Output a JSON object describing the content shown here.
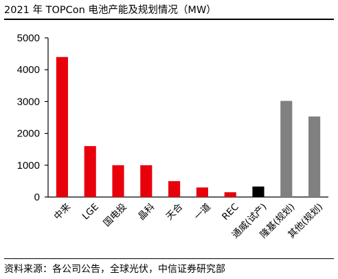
{
  "chart_data": {
    "type": "bar",
    "title": "2021 年 TOPCon 电池产能及规划情况（MW）",
    "categories": [
      "中来",
      "LGE",
      "国电投",
      "晶科",
      "天合",
      "一道",
      "REC",
      "通威(试产)",
      "隆基(规划)",
      "其他(规划)"
    ],
    "values": [
      4400,
      1600,
      1000,
      1000,
      500,
      300,
      150,
      330,
      3020,
      2530
    ],
    "bar_colors": [
      "#e8000b",
      "#e8000b",
      "#e8000b",
      "#e8000b",
      "#e8000b",
      "#e8000b",
      "#e8000b",
      "#000000",
      "#808080",
      "#808080"
    ],
    "ylim": [
      0,
      5000
    ],
    "yticks": [
      0,
      1000,
      2000,
      3000,
      4000,
      5000
    ],
    "grid": false,
    "xlabel": "",
    "ylabel": ""
  },
  "source": "资料来源：各公司公告，全球光伏，中信证券研究部"
}
